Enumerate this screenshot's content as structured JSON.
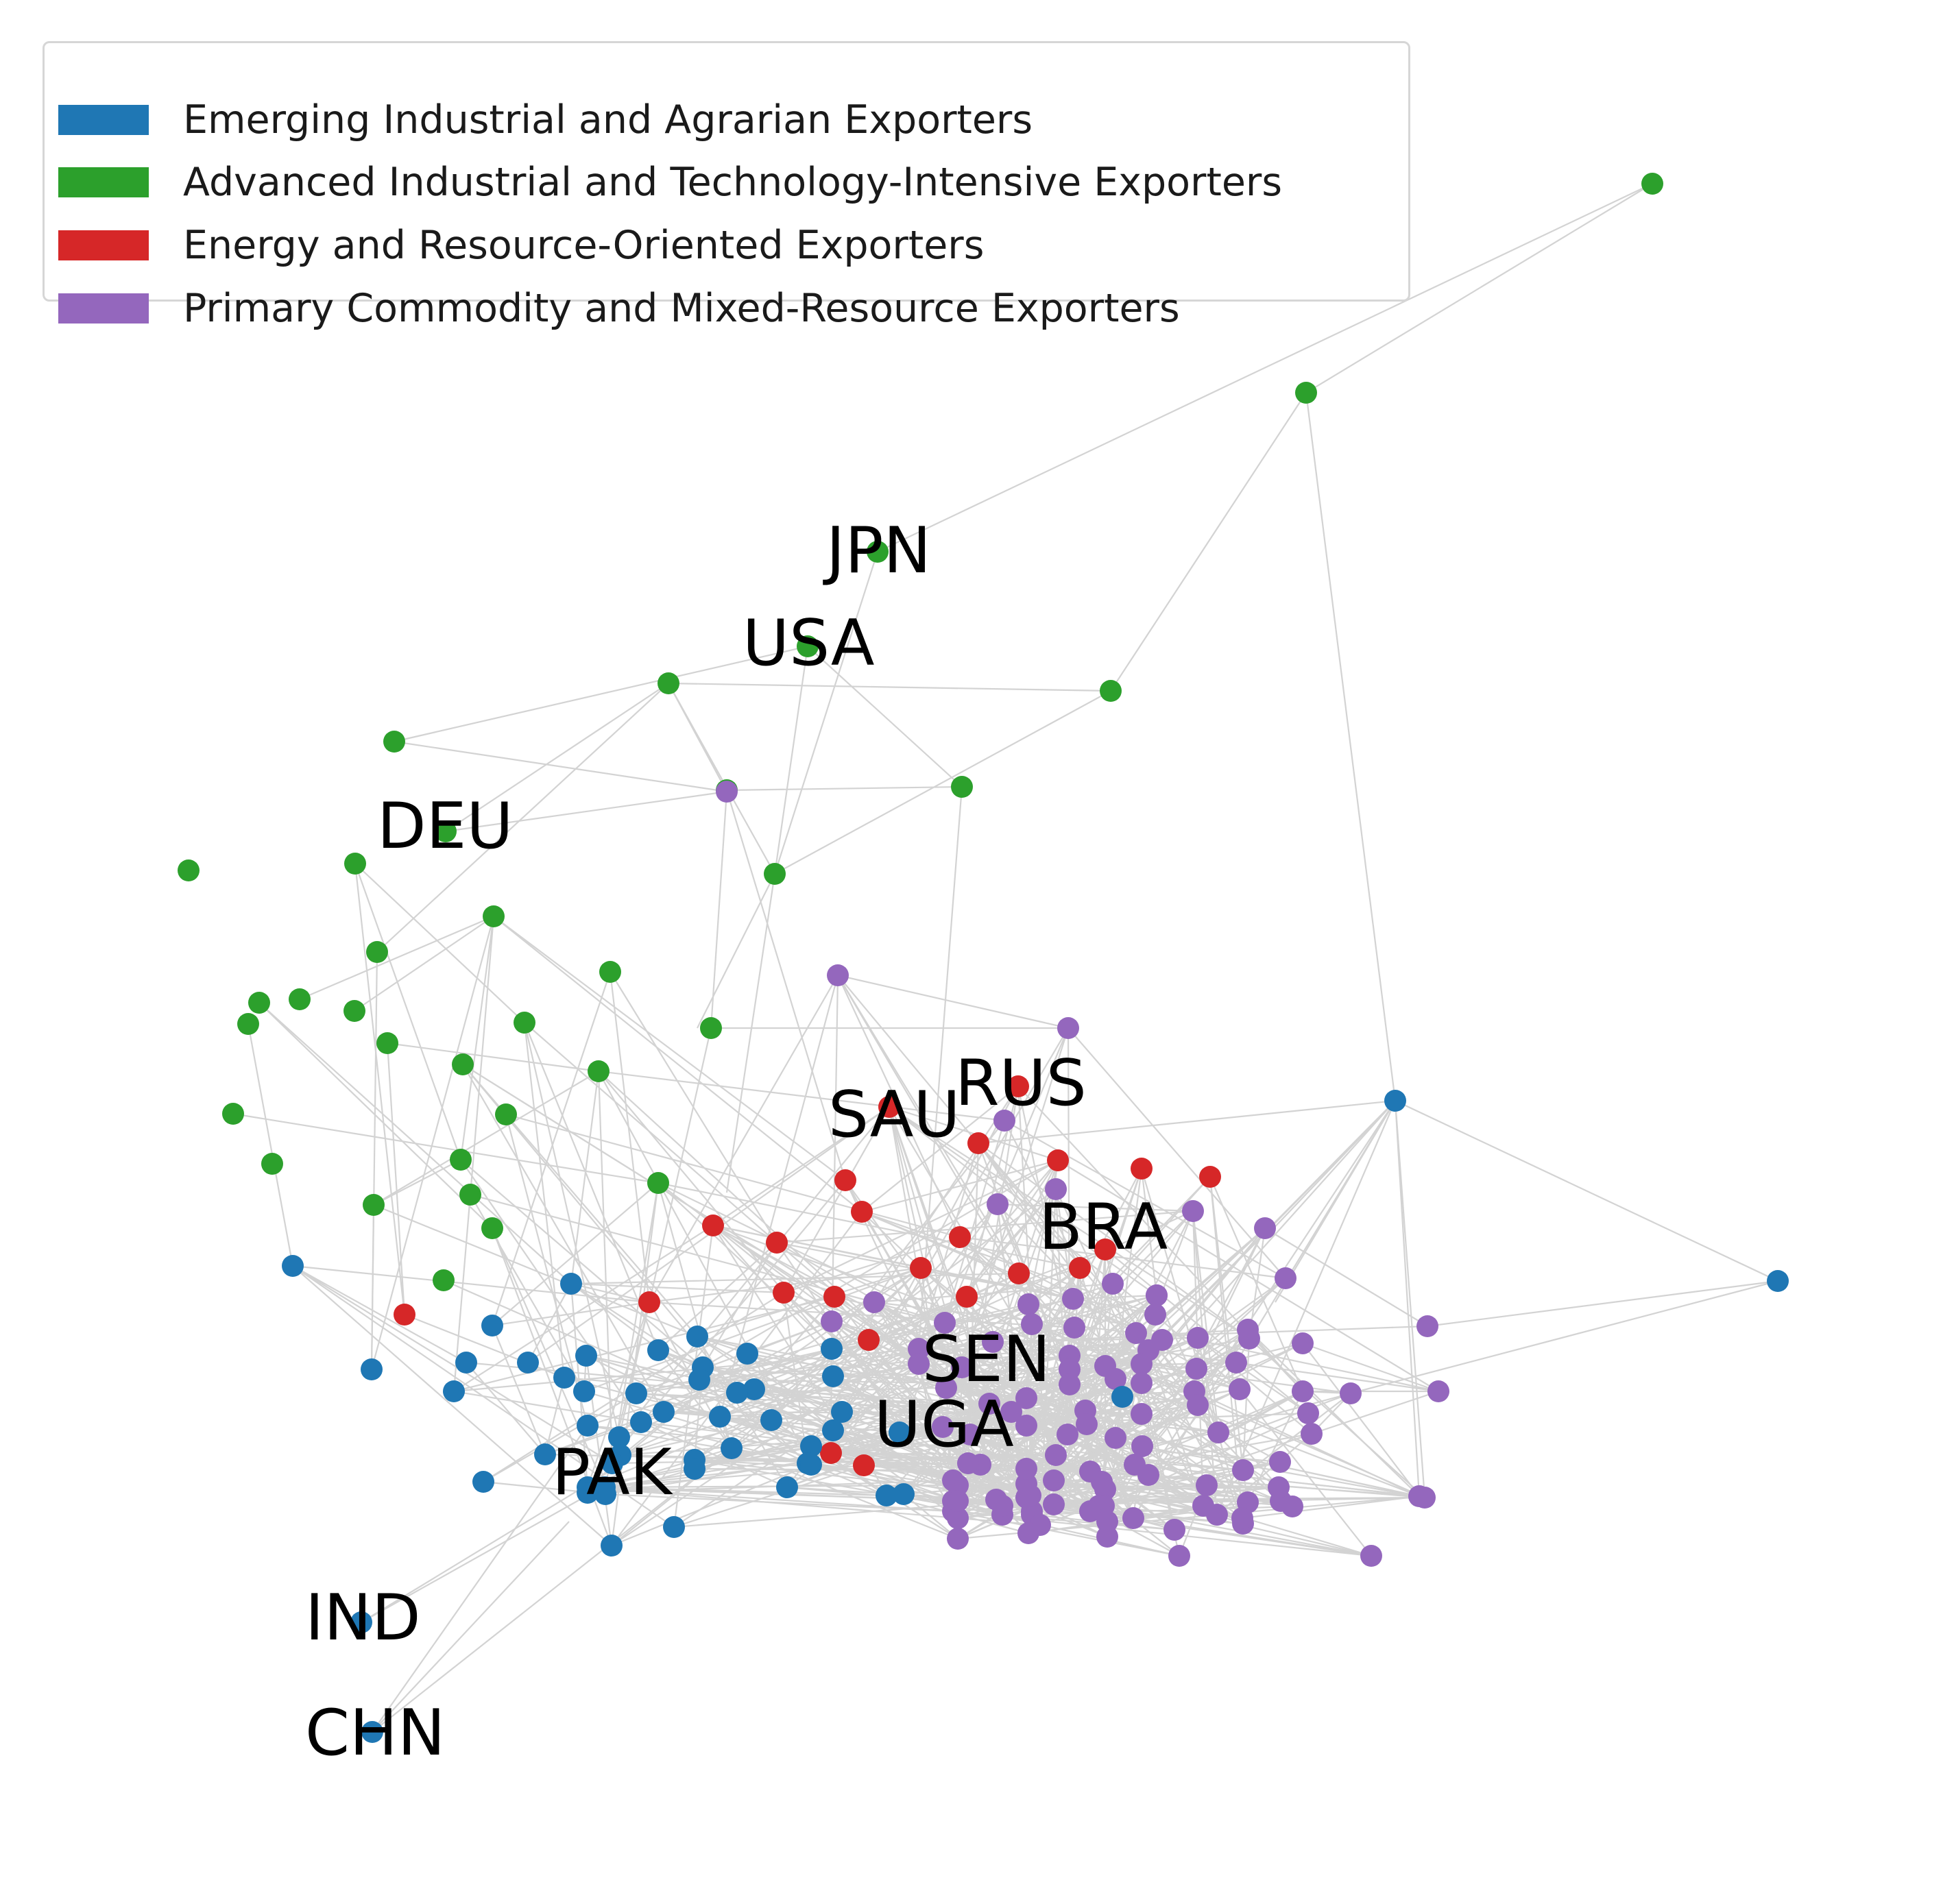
{
  "legend": {
    "items": [
      {
        "label": "Emerging Industrial and Agrarian Exporters",
        "color": "#1f77b4"
      },
      {
        "label": "Advanced Industrial and Technology-Intensive Exporters",
        "color": "#2ca02c"
      },
      {
        "label": "Energy and Resource-Oriented Exporters",
        "color": "#d62728"
      },
      {
        "label": "Primary Commodity and Mixed-Resource Exporters",
        "color": "#9467bd"
      }
    ]
  },
  "edge_color": "#d3d3d3",
  "labels": [
    "JPN",
    "USA",
    "DEU",
    "RUS",
    "SAU",
    "BRA",
    "SEN",
    "UGA",
    "PAK",
    "IND",
    "CHN"
  ]
}
